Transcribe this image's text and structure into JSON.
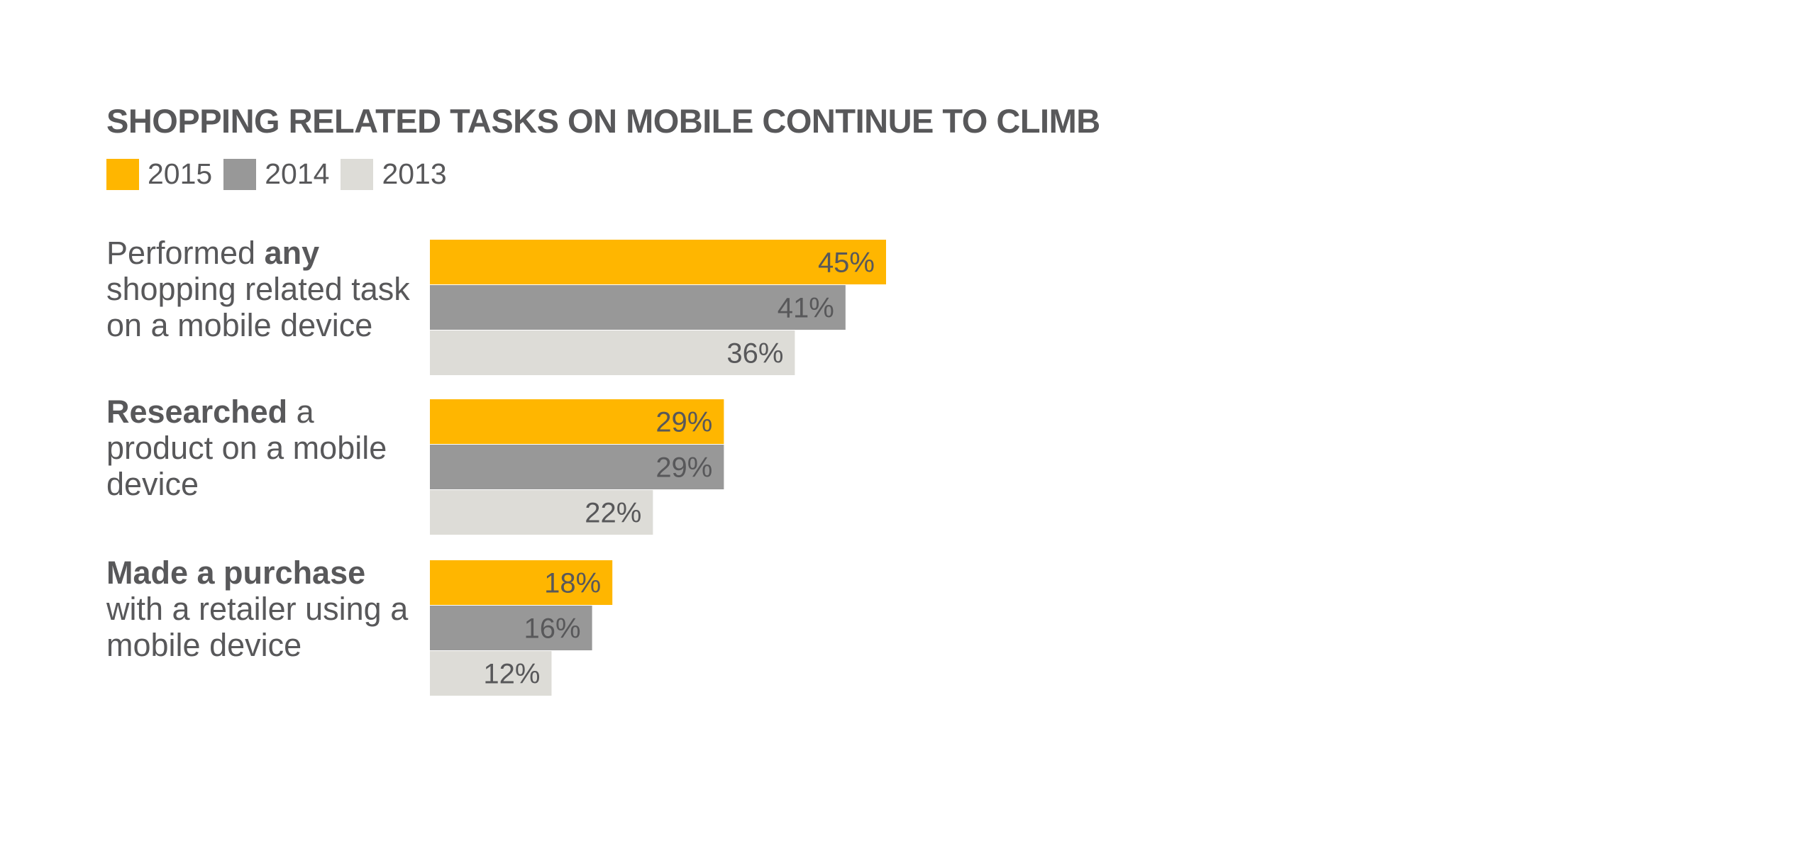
{
  "chart_data": {
    "type": "bar",
    "orientation": "horizontal",
    "title": "SHOPPING RELATED TASKS ON MOBILE CONTINUE TO CLIMB",
    "legend_position": "top-left",
    "grid": false,
    "value_suffix": "%",
    "xlim": [
      0,
      45
    ],
    "categories": [
      {
        "before": "Performed ",
        "bold": "any",
        "after": " shopping related task on a mobile device"
      },
      {
        "before": "",
        "bold": "Researched",
        "after": " a product on a mobile device"
      },
      {
        "before": "",
        "bold": "Made a purchase",
        "after": " with a retailer using a mobile device"
      }
    ],
    "series": [
      {
        "name": "2015",
        "color": "#ffb600",
        "values": [
          45,
          29,
          18
        ]
      },
      {
        "name": "2014",
        "color": "#989898",
        "values": [
          41,
          29,
          16
        ]
      },
      {
        "name": "2013",
        "color": "#dddcd7",
        "values": [
          36,
          22,
          12
        ]
      }
    ]
  }
}
